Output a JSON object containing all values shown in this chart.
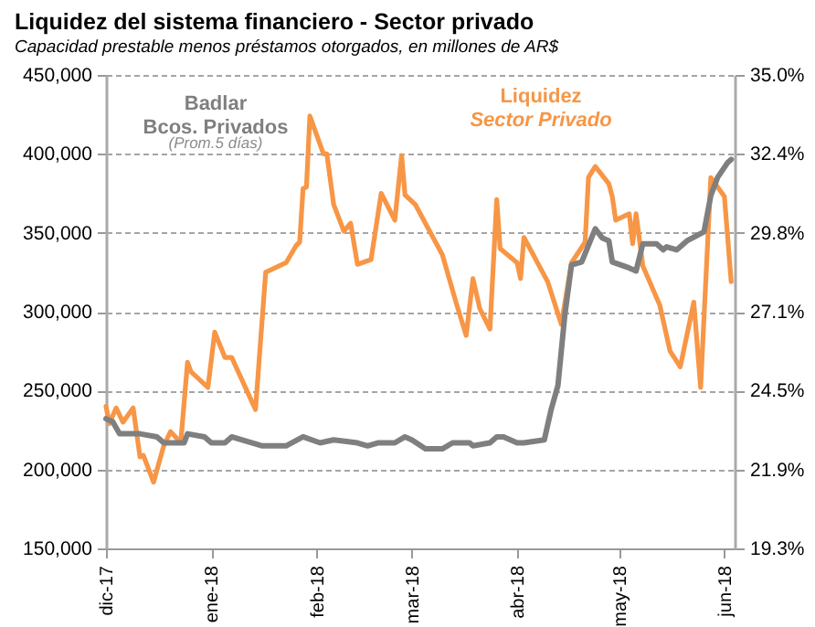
{
  "chart_data": {
    "type": "line",
    "title": "Liquidez del sistema financiero - Sector privado",
    "subtitle": "Capacidad prestable menos préstamos otorgados, en millones de AR$",
    "annotations": [
      "(Prom.5 días)"
    ],
    "xlim": [
      "2017-12-01",
      "2018-06-04"
    ],
    "xticks": [
      {
        "value": "2017-12-01",
        "label": "dic-17"
      },
      {
        "value": "2018-01-01",
        "label": "ene-18"
      },
      {
        "value": "2018-02-01",
        "label": "feb-18"
      },
      {
        "value": "2018-03-01",
        "label": "mar-18"
      },
      {
        "value": "2018-04-01",
        "label": "abr-18"
      },
      {
        "value": "2018-05-01",
        "label": "may-18"
      },
      {
        "value": "2018-06-01",
        "label": "jun-18"
      }
    ],
    "ylim": [
      150000,
      450000
    ],
    "yticks": [
      {
        "value": 150000,
        "label": "150,000"
      },
      {
        "value": 200000,
        "label": "200,000"
      },
      {
        "value": 250000,
        "label": "250,000"
      },
      {
        "value": 300000,
        "label": "300,000"
      },
      {
        "value": 350000,
        "label": "350,000"
      },
      {
        "value": 400000,
        "label": "400,000"
      },
      {
        "value": 450000,
        "label": "450,000"
      }
    ],
    "y2lim": [
      19.3,
      35.0
    ],
    "y2ticks": [
      {
        "value": 19.3,
        "label": "19.3%"
      },
      {
        "value": 21.917,
        "label": "21.9%"
      },
      {
        "value": 24.533,
        "label": "24.5%"
      },
      {
        "value": 27.15,
        "label": "27.1%"
      },
      {
        "value": 29.767,
        "label": "29.8%"
      },
      {
        "value": 32.383,
        "label": "32.4%"
      },
      {
        "value": 35.0,
        "label": "35.0%"
      }
    ],
    "grid": "y",
    "line_style": "solid",
    "marker": "none",
    "series": [
      {
        "name": "Liquidez\nSector Privado",
        "color": "#f79646",
        "x": [
          "2017-12-01",
          "2017-12-02",
          "2017-12-04",
          "2017-12-06",
          "2017-12-09",
          "2017-12-11",
          "2017-12-12",
          "2017-12-15",
          "2017-12-18",
          "2017-12-20",
          "2017-12-23",
          "2017-12-25",
          "2017-12-26",
          "2017-12-31",
          "2018-01-02",
          "2018-01-05",
          "2018-01-07",
          "2018-01-14",
          "2018-01-15",
          "2018-01-17",
          "2018-01-23",
          "2018-01-26",
          "2018-01-27",
          "2018-01-28",
          "2018-01-29",
          "2018-01-30",
          "2018-02-03",
          "2018-02-04",
          "2018-02-06",
          "2018-02-09",
          "2018-02-11",
          "2018-02-13",
          "2018-02-17",
          "2018-02-18",
          "2018-02-20",
          "2018-02-24",
          "2018-02-26",
          "2018-02-27",
          "2018-03-02",
          "2018-03-05",
          "2018-03-10",
          "2018-03-14",
          "2018-03-17",
          "2018-03-19",
          "2018-03-21",
          "2018-03-24",
          "2018-03-26",
          "2018-03-27",
          "2018-04-01",
          "2018-04-02",
          "2018-04-03",
          "2018-04-10",
          "2018-04-14",
          "2018-04-17",
          "2018-04-21",
          "2018-04-22",
          "2018-04-24",
          "2018-04-28",
          "2018-04-29",
          "2018-04-30",
          "2018-05-04",
          "2018-05-05",
          "2018-05-06",
          "2018-05-08",
          "2018-05-13",
          "2018-05-16",
          "2018-05-19",
          "2018-05-23",
          "2018-05-25",
          "2018-05-28",
          "2018-06-01",
          "2018-06-03"
        ],
        "values": [
          240000,
          229000,
          239000,
          230000,
          239000,
          208000,
          209000,
          192000,
          215000,
          224000,
          217000,
          268000,
          262000,
          252000,
          287000,
          271000,
          271000,
          238000,
          267000,
          325000,
          331000,
          342000,
          344000,
          378000,
          379000,
          424000,
          400000,
          400000,
          368000,
          351000,
          356000,
          330000,
          333000,
          347000,
          375000,
          358000,
          399000,
          374000,
          368000,
          356000,
          336000,
          306000,
          285000,
          321000,
          302000,
          289000,
          371000,
          340000,
          331000,
          321000,
          347000,
          319000,
          292000,
          331000,
          344000,
          385000,
          392000,
          381000,
          373000,
          358000,
          362000,
          343000,
          362000,
          329000,
          304000,
          275000,
          265000,
          306000,
          252000,
          385000,
          373000,
          319000
        ]
      },
      {
        "name": "Badlar\nBcos. Privados",
        "color": "#7f7f7f",
        "axis": "y2",
        "x": [
          "2017-12-01",
          "2017-12-03",
          "2017-12-05",
          "2017-12-11",
          "2017-12-16",
          "2017-12-18",
          "2017-12-24",
          "2017-12-25",
          "2017-12-30",
          "2018-01-01",
          "2018-01-05",
          "2018-01-07",
          "2018-01-16",
          "2018-01-23",
          "2018-01-28",
          "2018-02-02",
          "2018-02-06",
          "2018-02-13",
          "2018-02-16",
          "2018-02-19",
          "2018-02-24",
          "2018-02-27",
          "2018-03-01",
          "2018-03-05",
          "2018-03-10",
          "2018-03-13",
          "2018-03-18",
          "2018-03-19",
          "2018-03-24",
          "2018-03-26",
          "2018-03-28",
          "2018-04-01",
          "2018-04-03",
          "2018-04-09",
          "2018-04-11",
          "2018-04-13",
          "2018-04-15",
          "2018-04-17",
          "2018-04-20",
          "2018-04-24",
          "2018-04-26",
          "2018-04-28",
          "2018-04-29",
          "2018-05-04",
          "2018-05-06",
          "2018-05-08",
          "2018-05-12",
          "2018-05-14",
          "2018-05-15",
          "2018-05-18",
          "2018-05-21",
          "2018-05-26",
          "2018-05-28",
          "2018-05-30",
          "2018-06-02",
          "2018-06-03"
        ],
        "values": [
          23.6,
          23.5,
          23.1,
          23.1,
          23.0,
          22.8,
          22.8,
          23.1,
          23.0,
          22.8,
          22.8,
          23.0,
          22.7,
          22.7,
          23.0,
          22.8,
          22.9,
          22.8,
          22.7,
          22.8,
          22.8,
          23.0,
          22.9,
          22.6,
          22.6,
          22.8,
          22.8,
          22.7,
          22.8,
          23.0,
          23.0,
          22.8,
          22.8,
          22.9,
          23.9,
          24.7,
          27.0,
          28.7,
          28.8,
          29.9,
          29.6,
          29.5,
          28.8,
          28.6,
          28.5,
          29.4,
          29.4,
          29.2,
          29.3,
          29.2,
          29.5,
          29.8,
          31.0,
          31.6,
          32.1,
          32.2
        ]
      }
    ]
  }
}
